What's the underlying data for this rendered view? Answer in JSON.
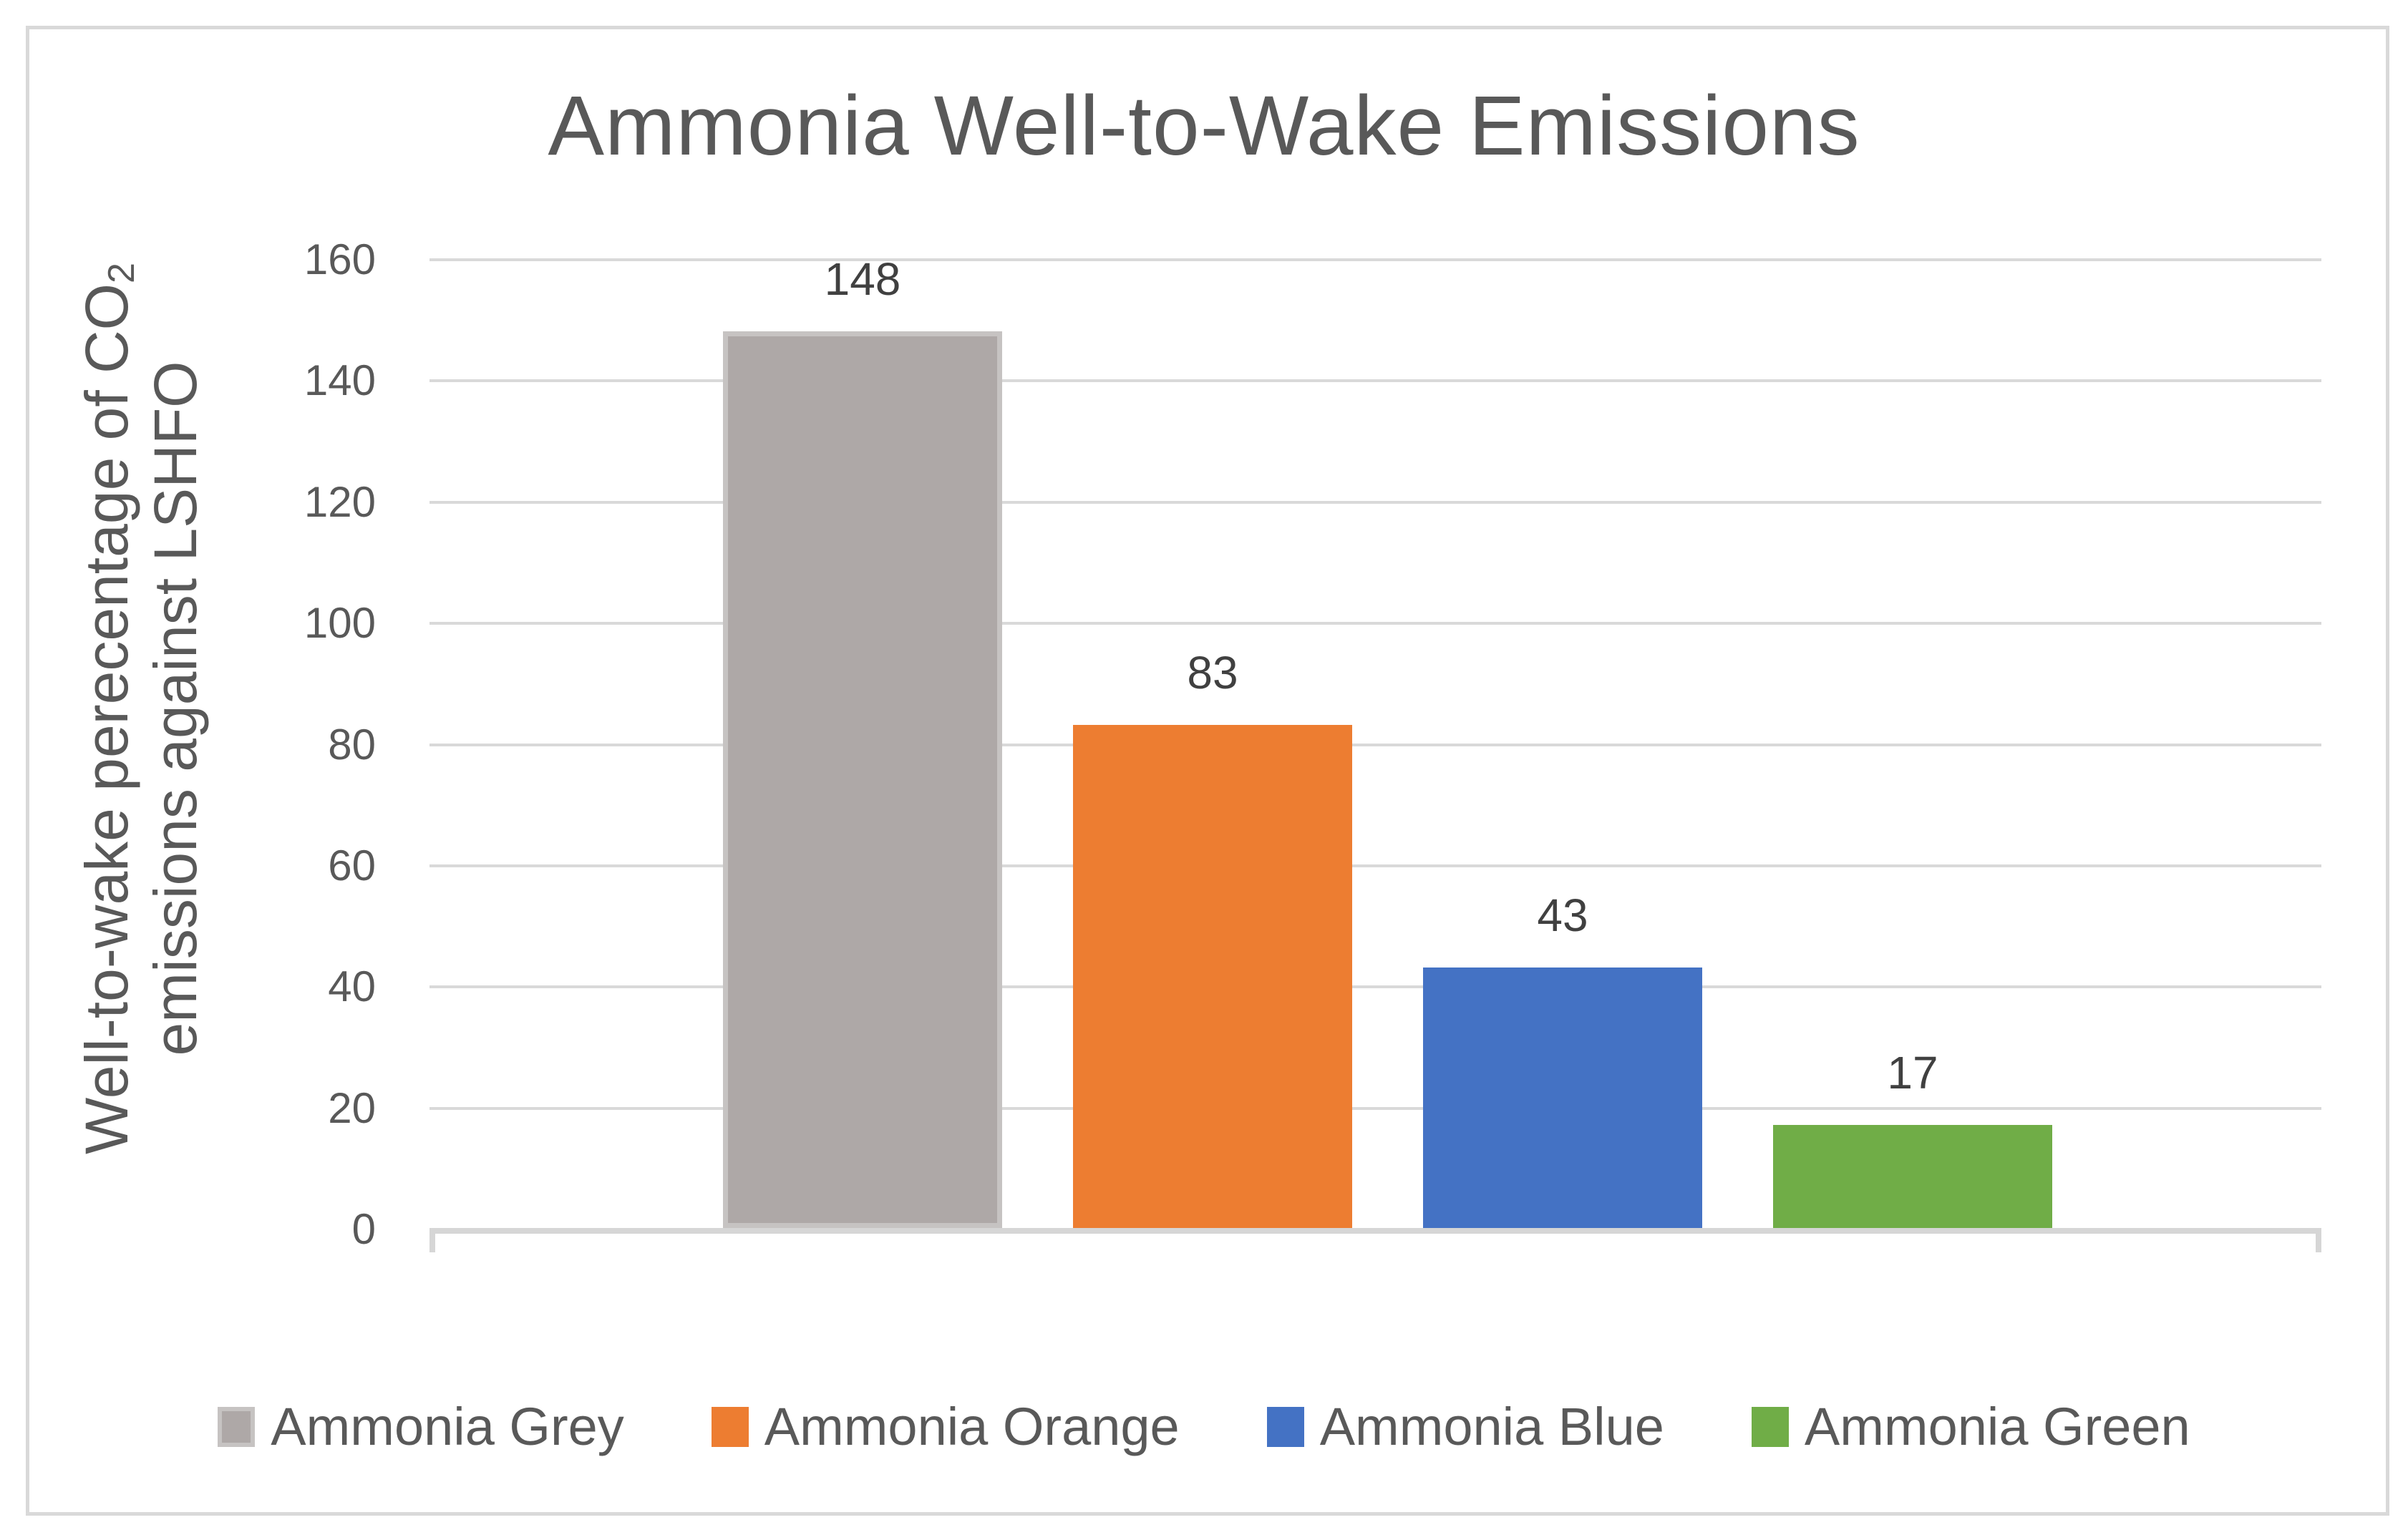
{
  "title": "Ammonia Well-to-Wake Emissions",
  "chart_data": {
    "type": "bar",
    "title": "Ammonia Well-to-Wake Emissions",
    "categories": [
      "Ammonia Grey",
      "Ammonia Orange",
      "Ammonia Blue",
      "Ammonia Green"
    ],
    "values": [
      148,
      83,
      43,
      17
    ],
    "data_labels": [
      "148",
      "83",
      "43",
      "17"
    ],
    "colors": [
      "#AEA8A7",
      "#ED7D31",
      "#4472C4",
      "#70AD47"
    ],
    "bar_border_colors": [
      "#C6C3C2",
      null,
      null,
      null
    ],
    "xlabel": "",
    "ylabel": "Well-to-wake perecentage of CO2 emissions against LSHFO",
    "ylabel_parts": {
      "line1": "Well-to-wake perecentage of CO",
      "line1_subscript": "2",
      "line2": "emissions against LSHFO"
    },
    "yticks": [
      0,
      20,
      40,
      60,
      80,
      100,
      120,
      140,
      160
    ],
    "ylim": [
      0,
      160
    ],
    "grid": true,
    "legend_position": "bottom",
    "legend_entries": [
      "Ammonia Grey",
      "Ammonia Orange",
      "Ammonia Blue",
      "Ammonia Green"
    ]
  },
  "theme_colors": {
    "title_text": "#595959",
    "axis_text": "#595959",
    "data_label_text": "#404040",
    "gridline": "#D9D9D9",
    "axis_line": "#D6D6D6",
    "chart_border": "#D9D9D9",
    "background": "#FFFFFF"
  }
}
